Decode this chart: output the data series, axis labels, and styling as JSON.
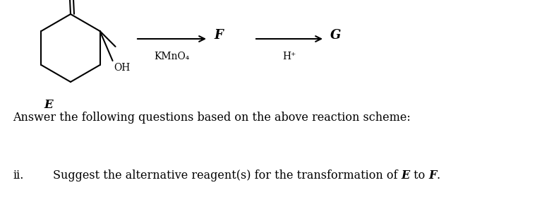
{
  "background_color": "#ffffff",
  "molecule_label": "E",
  "reagent1": "KMnO₄",
  "reagent2": "H⁺",
  "label_F": "F",
  "label_G": "G",
  "main_question": "Answer the following questions based on the above reaction scheme:",
  "question_number": "ii.",
  "question_text_parts": [
    {
      "text": "Suggest the alternative reagent(s) for the transformation of ",
      "style": "normal"
    },
    {
      "text": "E",
      "style": "italic"
    },
    {
      "text": " to ",
      "style": "normal"
    },
    {
      "text": "F",
      "style": "italic"
    },
    {
      "text": ".",
      "style": "normal"
    }
  ],
  "fig_width": 7.85,
  "fig_height": 3.03,
  "dpi": 100
}
